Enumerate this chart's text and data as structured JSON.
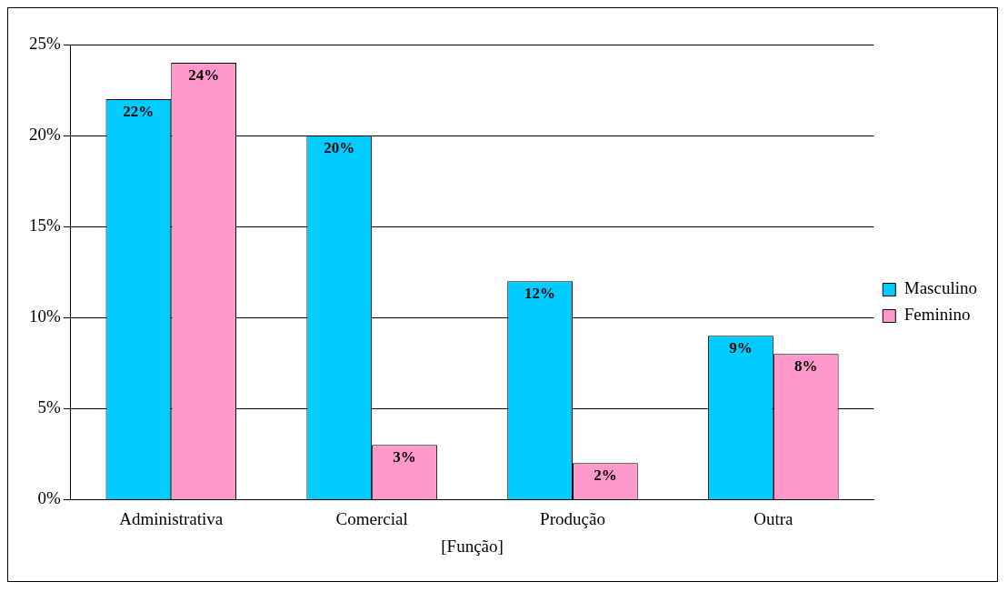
{
  "chart_data": {
    "type": "bar",
    "xlabel": "[Função]",
    "categories": [
      "Administrativa",
      "Comercial",
      "Produção",
      "Outra"
    ],
    "series": [
      {
        "name": "Masculino",
        "color": "#00ccff",
        "values": [
          22,
          20,
          12,
          9
        ],
        "value_labels": [
          "22%",
          "20%",
          "12%",
          "9%"
        ]
      },
      {
        "name": "Feminino",
        "color": "#ff99cc",
        "values": [
          24,
          3,
          2,
          8
        ],
        "value_labels": [
          "24%",
          "3%",
          "2%",
          "8%"
        ]
      }
    ],
    "ylim": [
      0,
      25
    ],
    "yticks": [
      {
        "value": 0,
        "label": "0%"
      },
      {
        "value": 5,
        "label": "5%"
      },
      {
        "value": 10,
        "label": "10%"
      },
      {
        "value": 15,
        "label": "15%"
      },
      {
        "value": 20,
        "label": "20%"
      },
      {
        "value": 25,
        "label": "25%"
      }
    ],
    "grid": "y",
    "legend": "right"
  }
}
